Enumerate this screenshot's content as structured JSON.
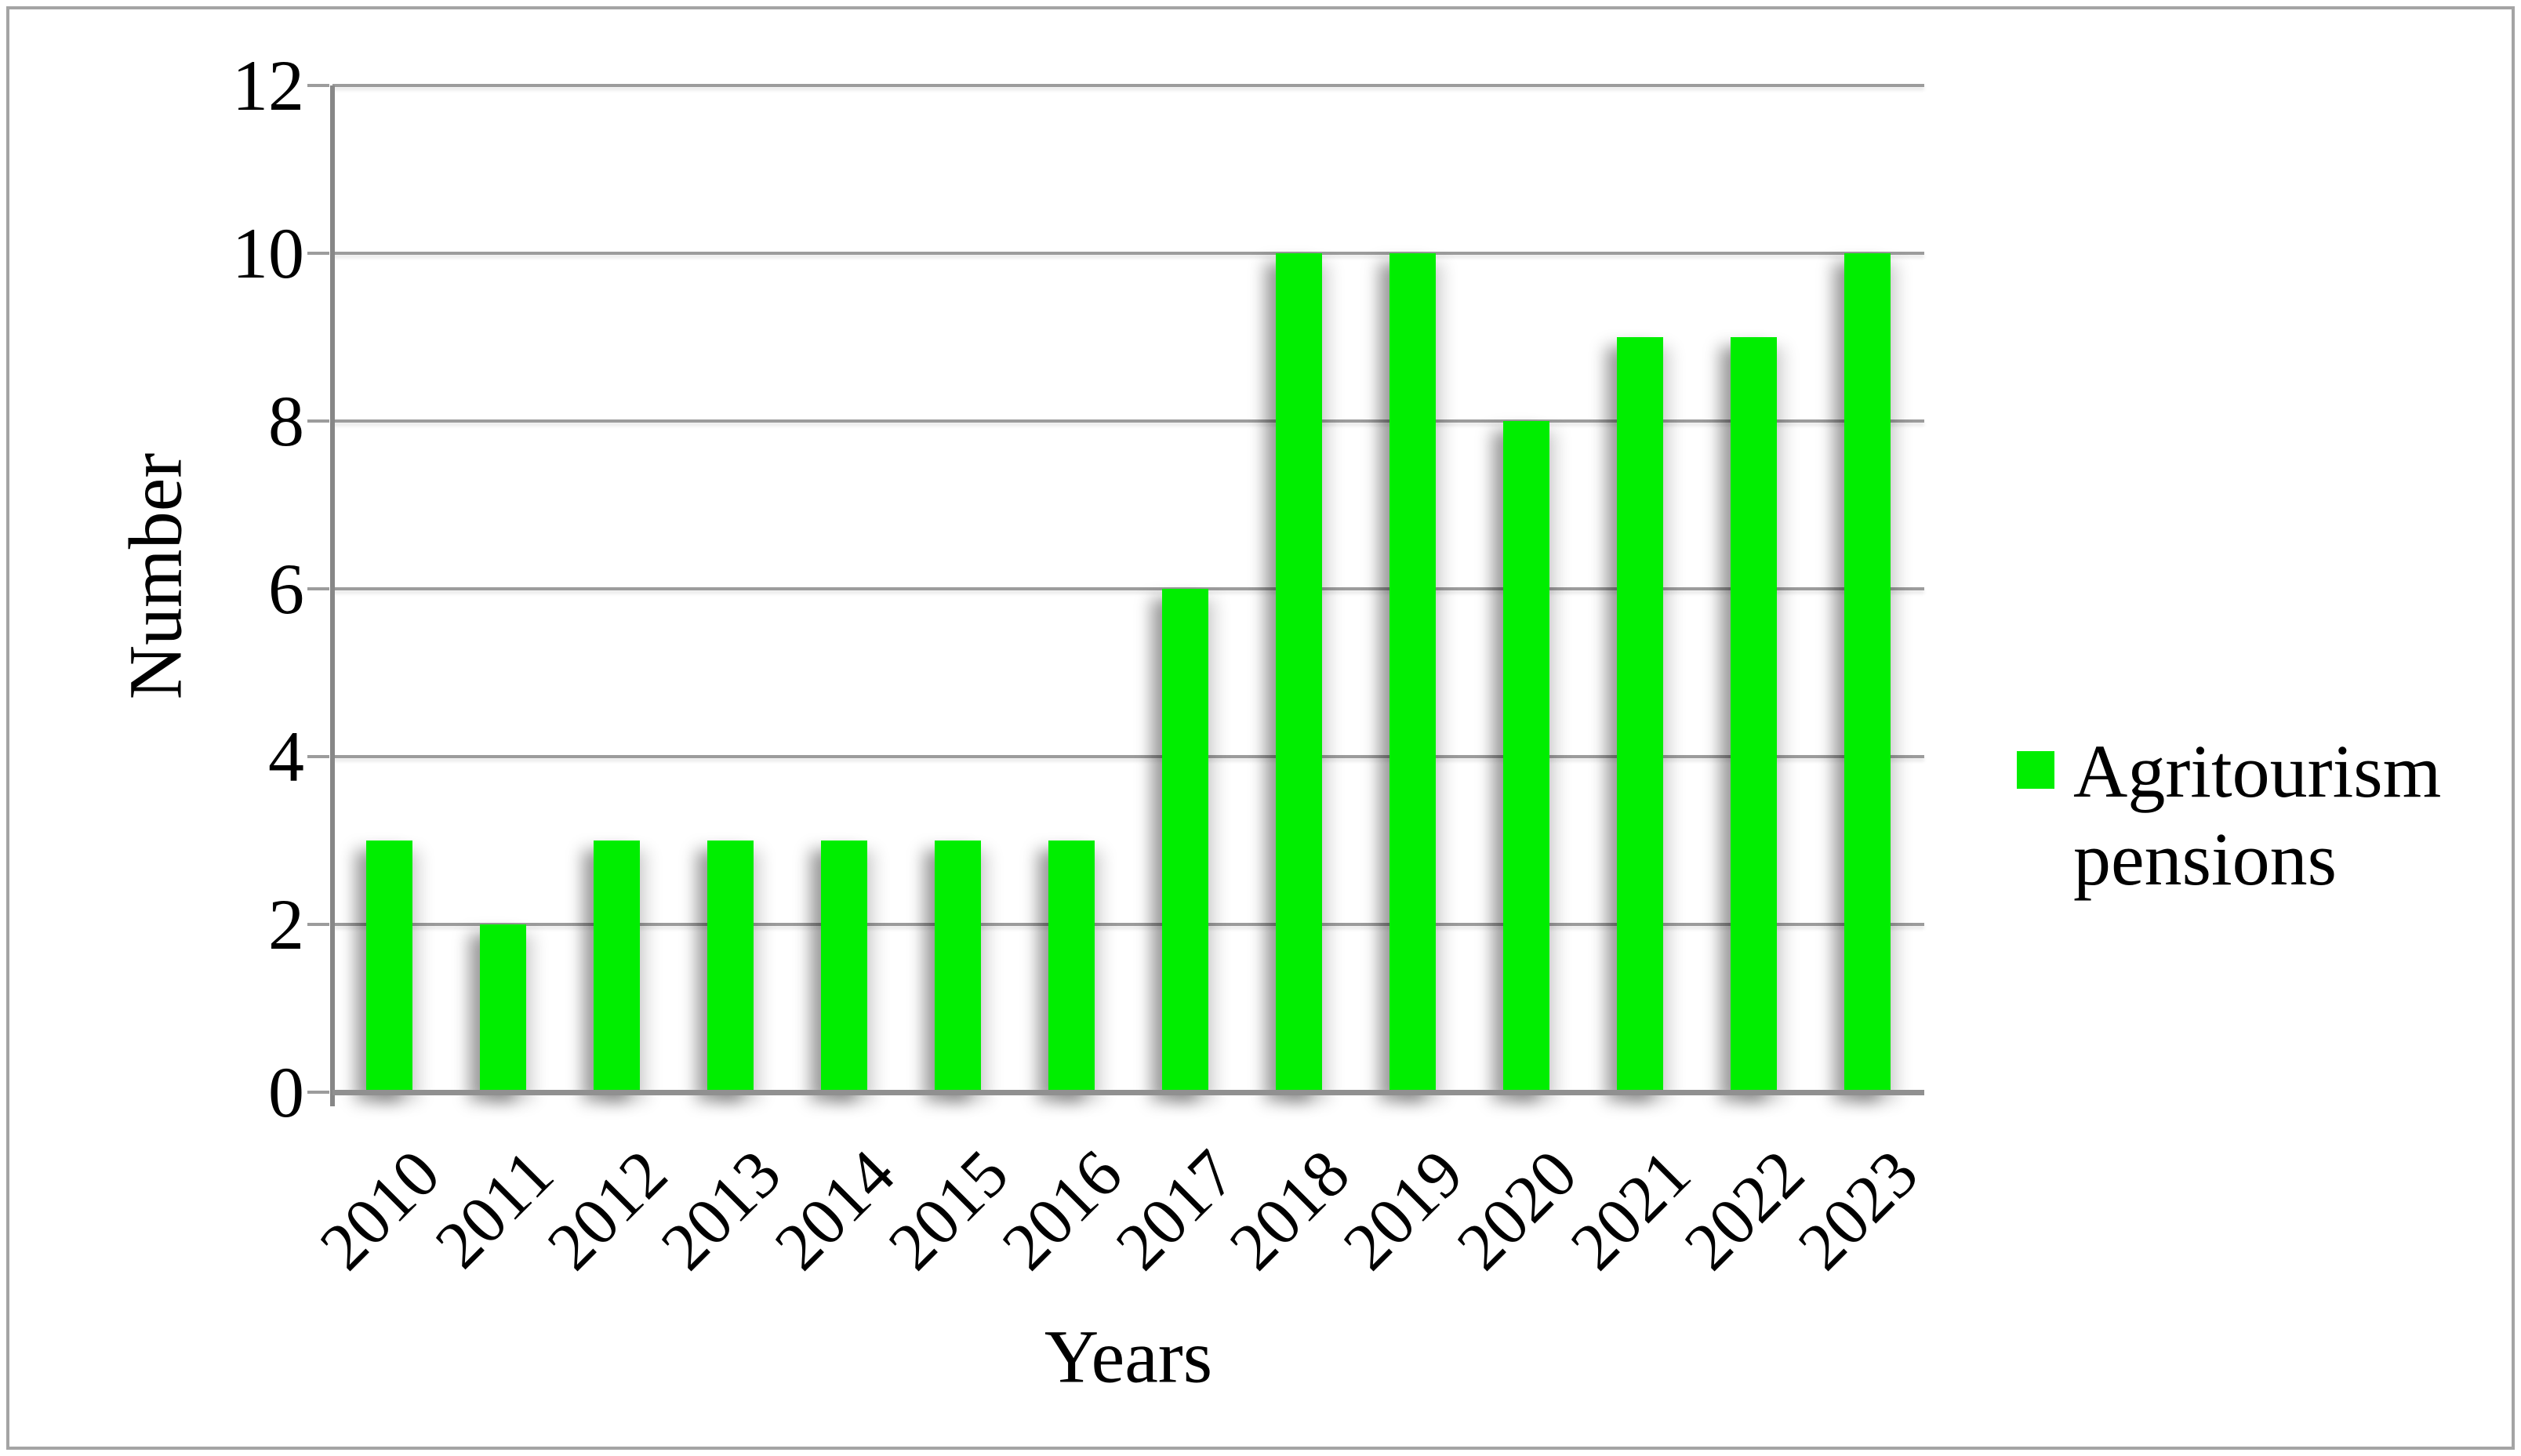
{
  "chart_data": {
    "type": "bar",
    "title": "",
    "categories": [
      "2010",
      "2011",
      "2012",
      "2013",
      "2014",
      "2015",
      "2016",
      "2017",
      "2018",
      "2019",
      "2020",
      "2021",
      "2022",
      "2023"
    ],
    "series": [
      {
        "name": "Agritourism pensions",
        "values": [
          3,
          2,
          3,
          3,
          3,
          3,
          3,
          6,
          10,
          10,
          8,
          9,
          9,
          10
        ],
        "color": "#00ee00"
      }
    ],
    "xlabel": "Years",
    "ylabel": "Number",
    "ylim": [
      0,
      12
    ],
    "yticks": [
      0,
      2,
      4,
      6,
      8,
      10,
      12
    ],
    "grid": true,
    "legend_position": "right-middle",
    "colors": {
      "bar_fill": "#00ee00",
      "gridline": "#9c9c9c",
      "axis_line": "#878787",
      "frame_border": "#a4a4a4",
      "text": "#000000",
      "background": "#ffffff"
    }
  }
}
